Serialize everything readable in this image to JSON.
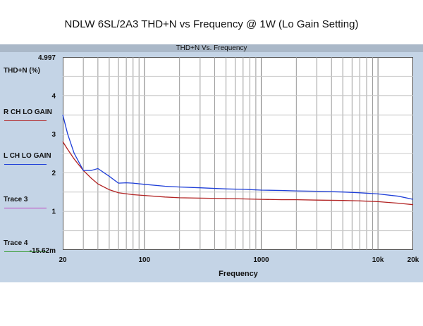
{
  "page_title": "NDLW 6SL/2A3 THD+N vs Frequency @ 1W (Lo Gain Setting)",
  "panel_title": "THD+N Vs. Frequency",
  "chart_data": {
    "type": "line",
    "title": "THD+N Vs. Frequency",
    "xlabel": "Frequency",
    "ylabel": "THD+N (%)",
    "x_scale": "log",
    "xlim": [
      20,
      20000
    ],
    "ylim": [
      -0.01562,
      4.997
    ],
    "y_top_label": "4.997",
    "y_bottom_label": "-15.62m",
    "x_ticks": [
      {
        "value": 20,
        "label": "20"
      },
      {
        "value": 100,
        "label": "100"
      },
      {
        "value": 1000,
        "label": "1000"
      },
      {
        "value": 10000,
        "label": "10k"
      },
      {
        "value": 20000,
        "label": "20k"
      }
    ],
    "y_ticks": [
      {
        "value": 4.997,
        "label": "4.997"
      },
      {
        "value": 4,
        "label": "4"
      },
      {
        "value": 3,
        "label": "3"
      },
      {
        "value": 2,
        "label": "2"
      },
      {
        "value": 1,
        "label": "1"
      },
      {
        "value": -0.01562,
        "label": "-15.62m"
      }
    ],
    "grid": true,
    "legend_position": "left",
    "series": [
      {
        "name": "R CH LO GAIN",
        "color": "#b22222",
        "x": [
          20,
          22,
          25,
          30,
          35,
          40,
          50,
          60,
          80,
          100,
          150,
          200,
          300,
          500,
          700,
          1000,
          1500,
          2000,
          3000,
          5000,
          7000,
          10000,
          15000,
          20000
        ],
        "y": [
          2.8,
          2.6,
          2.35,
          2.05,
          1.85,
          1.7,
          1.55,
          1.47,
          1.42,
          1.4,
          1.36,
          1.34,
          1.33,
          1.32,
          1.31,
          1.3,
          1.29,
          1.29,
          1.28,
          1.27,
          1.26,
          1.24,
          1.2,
          1.16
        ]
      },
      {
        "name": "L CH LO GAIN",
        "color": "#1f3fd8",
        "x": [
          20,
          22,
          25,
          30,
          35,
          40,
          50,
          60,
          70,
          80,
          100,
          150,
          200,
          300,
          500,
          700,
          1000,
          1500,
          2000,
          3000,
          5000,
          7000,
          10000,
          15000,
          20000
        ],
        "y": [
          3.5,
          3.0,
          2.5,
          2.05,
          2.05,
          2.1,
          1.9,
          1.72,
          1.73,
          1.72,
          1.69,
          1.64,
          1.62,
          1.6,
          1.57,
          1.56,
          1.54,
          1.53,
          1.52,
          1.51,
          1.49,
          1.47,
          1.44,
          1.38,
          1.3
        ]
      },
      {
        "name": "Trace 3",
        "color": "#c040c0",
        "x": [],
        "y": []
      },
      {
        "name": "Trace 4",
        "color": "#40a040",
        "x": [],
        "y": []
      }
    ]
  }
}
